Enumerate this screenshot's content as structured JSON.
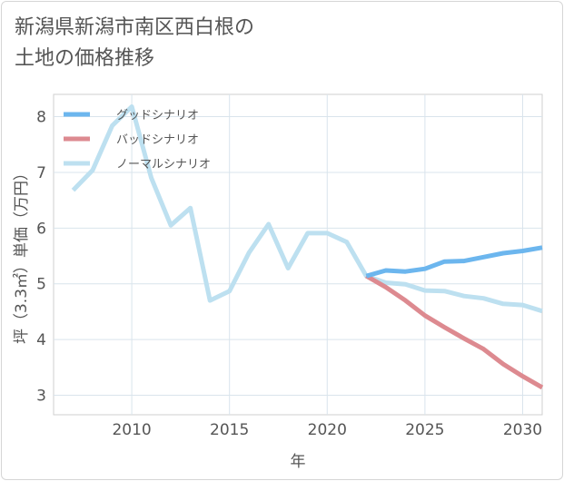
{
  "page": {
    "title_line1": "新潟県新潟市南区西白根の",
    "title_line2": "土地の価格推移"
  },
  "chart_data": {
    "type": "line",
    "title": "新潟県新潟市南区西白根の土地の価格推移",
    "xlabel": "年",
    "ylabel": "坪（3.3㎡）単価（万円）",
    "xlim": [
      2006,
      2031
    ],
    "ylim": [
      2.65,
      8.4
    ],
    "xticks": [
      2010,
      2015,
      2020,
      2025,
      2030
    ],
    "yticks": [
      3,
      4,
      5,
      6,
      7,
      8
    ],
    "grid": true,
    "legend_position": "top-left",
    "series": [
      {
        "name": "グッドシナリオ",
        "color": "#6cb6ee",
        "x": [
          2022,
          2023,
          2024,
          2025,
          2026,
          2027,
          2028,
          2029,
          2030,
          2031
        ],
        "values": [
          5.14,
          5.24,
          5.22,
          5.27,
          5.4,
          5.41,
          5.48,
          5.55,
          5.59,
          5.65
        ]
      },
      {
        "name": "バッドシナリオ",
        "color": "#dd8a90",
        "x": [
          2022,
          2023,
          2024,
          2025,
          2026,
          2027,
          2028,
          2029,
          2030,
          2031
        ],
        "values": [
          5.14,
          4.94,
          4.7,
          4.43,
          4.22,
          4.02,
          3.83,
          3.56,
          3.34,
          3.14
        ]
      },
      {
        "name": "ノーマルシナリオ",
        "color": "#bde0f0",
        "x": [
          2007,
          2008,
          2009,
          2010,
          2011,
          2012,
          2013,
          2014,
          2015,
          2016,
          2017,
          2018,
          2019,
          2020,
          2021,
          2022,
          2023,
          2024,
          2025,
          2026,
          2027,
          2028,
          2029,
          2030,
          2031
        ],
        "values": [
          6.68,
          7.04,
          7.84,
          8.18,
          6.9,
          6.05,
          6.36,
          4.7,
          4.87,
          5.56,
          6.07,
          5.28,
          5.91,
          5.91,
          5.75,
          5.14,
          5.02,
          4.99,
          4.88,
          4.87,
          4.78,
          4.74,
          4.64,
          4.62,
          4.51
        ]
      }
    ]
  }
}
